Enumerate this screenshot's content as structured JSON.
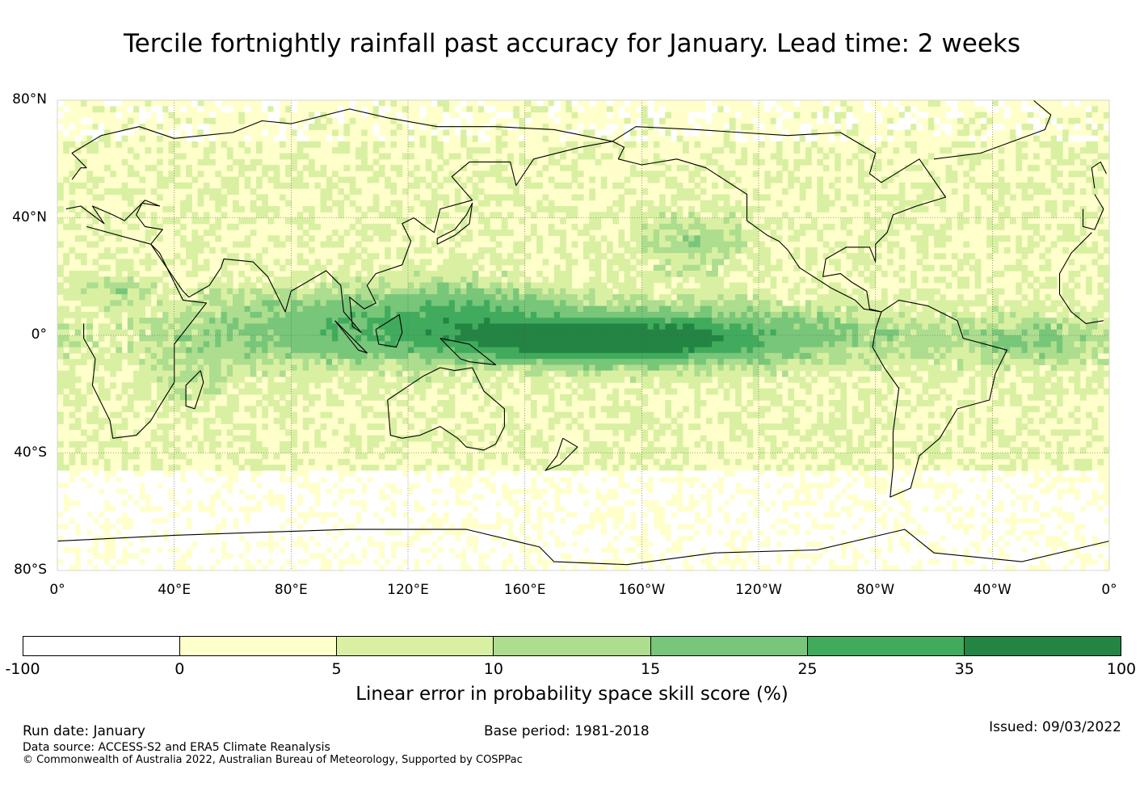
{
  "title": "Tercile fortnightly rainfall past accuracy for January. Lead time: 2 weeks",
  "map": {
    "lat_labels": [
      "80°N",
      "40°N",
      "0°",
      "40°S",
      "80°S"
    ],
    "lon_labels": [
      "0°",
      "40°E",
      "80°E",
      "120°E",
      "160°E",
      "160°W",
      "120°W",
      "80°W",
      "40°W",
      "0°"
    ],
    "chart_data": {
      "type": "heatmap",
      "variable": "Linear error in probability space skill score (%)",
      "lat_range": [
        -80,
        80
      ],
      "lon_range": [
        0,
        360
      ],
      "note": "Highest skill (25-100%) in equatorial central/eastern Pacific; moderate skill (10-25%) over Maritime Continent, tropical Indian Ocean, tropical Atlantic and north-east Pacific; low skill (0-10%) in mid-latitudes; negative skill patches at high southern latitudes."
    }
  },
  "colorbar": {
    "bounds": [
      "-100",
      "0",
      "5",
      "10",
      "15",
      "25",
      "35",
      "100"
    ],
    "colors": [
      "#ffffff",
      "#ffffcc",
      "#d9f0a3",
      "#addd8e",
      "#78c679",
      "#41ab5d",
      "#238443"
    ],
    "label": "Linear error in probability space skill score (%)"
  },
  "footer": {
    "run_date": "Run date: January",
    "base_period": "Base period: 1981-2018",
    "issued": "Issued: 09/03/2022",
    "source": "Data source: ACCESS-S2 and ERA5 Climate Reanalysis",
    "copyright": "© Commonwealth of Australia 2022, Australian Bureau of Meteorology, Supported by COSPPac"
  }
}
